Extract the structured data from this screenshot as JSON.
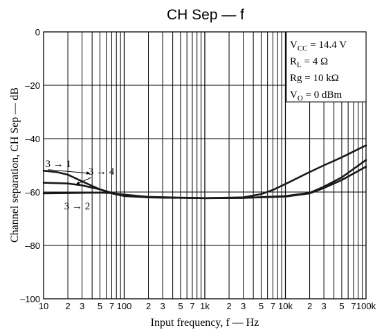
{
  "chart_data": {
    "type": "line",
    "title": "CH Sep — f",
    "xlabel": "Input frequency, f — Hz",
    "ylabel": "Channel separation, CH Sep — dB",
    "x_scale": "log",
    "xlim": [
      10,
      100000
    ],
    "ylim": [
      -100,
      0
    ],
    "grid": true,
    "y_ticks": [
      {
        "value": 0,
        "label": "0"
      },
      {
        "value": -20,
        "label": "–20"
      },
      {
        "value": -40,
        "label": "–40"
      },
      {
        "value": -60,
        "label": "–60"
      },
      {
        "value": -80,
        "label": "–80"
      },
      {
        "value": -100,
        "label": "–100"
      }
    ],
    "x_ticks": [
      {
        "value": 10,
        "label": "10"
      },
      {
        "value": 20,
        "label": "2"
      },
      {
        "value": 30,
        "label": "3"
      },
      {
        "value": 50,
        "label": "5"
      },
      {
        "value": 70,
        "label": "7"
      },
      {
        "value": 100,
        "label": "100"
      },
      {
        "value": 200,
        "label": "2"
      },
      {
        "value": 300,
        "label": "3"
      },
      {
        "value": 500,
        "label": "5"
      },
      {
        "value": 700,
        "label": "7"
      },
      {
        "value": 1000,
        "label": "1k"
      },
      {
        "value": 2000,
        "label": "2"
      },
      {
        "value": 3000,
        "label": "3"
      },
      {
        "value": 5000,
        "label": "5"
      },
      {
        "value": 7000,
        "label": "7"
      },
      {
        "value": 10000,
        "label": "10k"
      },
      {
        "value": 20000,
        "label": "2"
      },
      {
        "value": 30000,
        "label": "3"
      },
      {
        "value": 50000,
        "label": "5"
      },
      {
        "value": 70000,
        "label": "7"
      },
      {
        "value": 100000,
        "label": "100k"
      }
    ],
    "minor_x_gridlines": [
      20,
      30,
      40,
      50,
      60,
      70,
      80,
      90,
      200,
      300,
      400,
      500,
      600,
      700,
      800,
      900,
      2000,
      3000,
      4000,
      5000,
      6000,
      7000,
      8000,
      9000,
      20000,
      30000,
      40000,
      50000,
      60000,
      70000,
      80000,
      90000
    ],
    "series": [
      {
        "name": "3 → 1",
        "color": "#1a1a1a",
        "points": [
          [
            10,
            -52
          ],
          [
            15,
            -52.6
          ],
          [
            20,
            -53.5
          ],
          [
            30,
            -56
          ],
          [
            50,
            -59
          ],
          [
            70,
            -60.5
          ],
          [
            100,
            -61.5
          ],
          [
            200,
            -62
          ],
          [
            1000,
            -62.3
          ],
          [
            3000,
            -62
          ],
          [
            5000,
            -60.8
          ],
          [
            7000,
            -59.2
          ],
          [
            10000,
            -57
          ],
          [
            20000,
            -52.5
          ],
          [
            30000,
            -50
          ],
          [
            50000,
            -47
          ],
          [
            100000,
            -42.5
          ]
        ]
      },
      {
        "name": "3 → 4",
        "color": "#1a1a1a",
        "points": [
          [
            10,
            -56.5
          ],
          [
            20,
            -56.8
          ],
          [
            30,
            -57.5
          ],
          [
            50,
            -59
          ],
          [
            70,
            -60.3
          ],
          [
            100,
            -61.3
          ],
          [
            200,
            -62
          ],
          [
            1000,
            -62.3
          ],
          [
            3000,
            -62.2
          ],
          [
            10000,
            -61.7
          ],
          [
            20000,
            -60.5
          ],
          [
            30000,
            -58.5
          ],
          [
            50000,
            -55.5
          ],
          [
            100000,
            -50.5
          ]
        ]
      },
      {
        "name": "3 → 2",
        "color": "#1a1a1a",
        "points": [
          [
            10,
            -60.5
          ],
          [
            20,
            -60.4
          ],
          [
            30,
            -60.3
          ],
          [
            50,
            -60.2
          ],
          [
            70,
            -60.4
          ],
          [
            100,
            -61
          ],
          [
            200,
            -61.8
          ],
          [
            1000,
            -62.3
          ],
          [
            3000,
            -62.2
          ],
          [
            10000,
            -61.5
          ],
          [
            20000,
            -60.3
          ],
          [
            30000,
            -58
          ],
          [
            50000,
            -54.5
          ],
          [
            100000,
            -48
          ]
        ]
      }
    ],
    "conditions": [
      "V_CC = 14.4 V",
      "R_L = 4 Ω",
      "Rg = 10 kΩ",
      "V_O = 0 dBm"
    ],
    "annotations": [
      {
        "text": "3 → 1",
        "x": 10.5,
        "y": -50.6,
        "arrow_to": [
          38,
          -53
        ]
      },
      {
        "text": "3 → 4",
        "x": 36,
        "y": -53.5,
        "arrow_to": [
          25,
          -57.2
        ]
      },
      {
        "text": "3 → 2",
        "x": 18,
        "y": -66.5
      }
    ]
  }
}
